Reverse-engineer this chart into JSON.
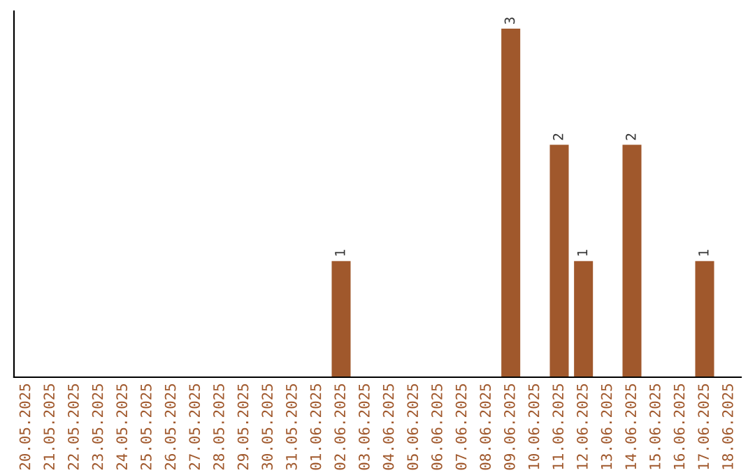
{
  "chart_data": {
    "type": "bar",
    "categories": [
      "20.05.2025",
      "21.05.2025",
      "22.05.2025",
      "23.05.2025",
      "24.05.2025",
      "25.05.2025",
      "26.05.2025",
      "27.05.2025",
      "28.05.2025",
      "29.05.2025",
      "30.05.2025",
      "31.05.2025",
      "01.06.2025",
      "02.06.2025",
      "03.06.2025",
      "04.06.2025",
      "05.06.2025",
      "06.06.2025",
      "07.06.2025",
      "08.06.2025",
      "09.06.2025",
      "10.06.2025",
      "11.06.2025",
      "12.06.2025",
      "13.06.2025",
      "14.06.2025",
      "15.06.2025",
      "16.06.2025",
      "17.06.2025",
      "18.06.2025"
    ],
    "values": [
      null,
      null,
      null,
      null,
      null,
      null,
      null,
      null,
      null,
      null,
      null,
      null,
      null,
      1,
      null,
      null,
      null,
      null,
      null,
      null,
      3,
      null,
      2,
      1,
      null,
      2,
      null,
      null,
      1,
      null
    ],
    "data_labels": true,
    "color": "#a0582c",
    "grid": false,
    "legend": false
  }
}
